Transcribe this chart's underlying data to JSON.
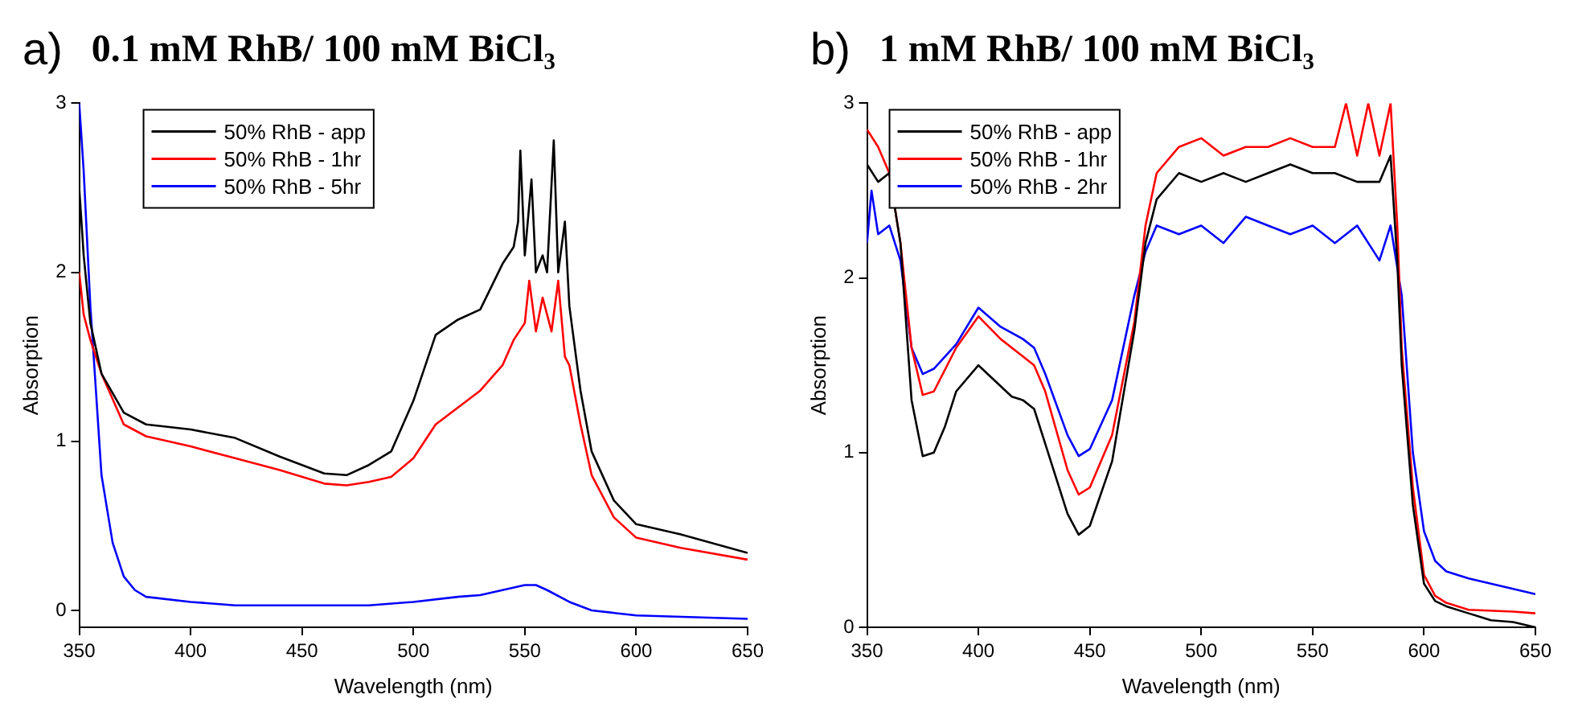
{
  "chart_data": [
    {
      "type": "line",
      "title": "0.1 mM RhB/ 100 mM BiCl₃",
      "annotations": [
        "a)"
      ],
      "xlabel": "Wavelength (nm)",
      "ylabel": "Absorption",
      "xlim": [
        350,
        650
      ],
      "xticks": [
        350,
        400,
        450,
        500,
        550,
        600,
        650
      ],
      "ylim": [
        -0.1,
        3
      ],
      "yticks": [
        0,
        1,
        2,
        3
      ],
      "grid": false,
      "legend": "top left",
      "marker": "none",
      "line_style": "solid",
      "series": [
        {
          "name": "50% RhB - app",
          "color": "#000000",
          "x": [
            350,
            352,
            355,
            360,
            370,
            380,
            400,
            420,
            440,
            460,
            470,
            480,
            490,
            500,
            510,
            520,
            530,
            540,
            545,
            547,
            548,
            550,
            553,
            555,
            558,
            560,
            563,
            565,
            568,
            570,
            575,
            580,
            590,
            600,
            620,
            650
          ],
          "values": [
            2.5,
            2.1,
            1.7,
            1.4,
            1.17,
            1.1,
            1.07,
            1.02,
            0.91,
            0.81,
            0.8,
            0.86,
            0.94,
            1.24,
            1.63,
            1.72,
            1.78,
            2.05,
            2.15,
            2.3,
            2.72,
            2.1,
            2.55,
            2.0,
            2.1,
            2.0,
            2.78,
            2.0,
            2.3,
            1.8,
            1.3,
            0.94,
            0.65,
            0.51,
            0.45,
            0.34
          ]
        },
        {
          "name": "50% RhB - 1hr",
          "color": "#ff0000",
          "x": [
            350,
            352,
            355,
            360,
            370,
            380,
            400,
            420,
            440,
            460,
            470,
            480,
            490,
            500,
            510,
            520,
            530,
            540,
            545,
            550,
            552,
            555,
            558,
            562,
            565,
            568,
            570,
            575,
            580,
            590,
            600,
            620,
            650
          ],
          "values": [
            2.0,
            1.75,
            1.6,
            1.4,
            1.1,
            1.03,
            0.97,
            0.9,
            0.83,
            0.75,
            0.74,
            0.76,
            0.79,
            0.9,
            1.1,
            1.2,
            1.3,
            1.45,
            1.6,
            1.7,
            1.95,
            1.65,
            1.85,
            1.65,
            1.95,
            1.5,
            1.45,
            1.1,
            0.8,
            0.55,
            0.43,
            0.37,
            0.3
          ]
        },
        {
          "name": "50% RhB - 5hr",
          "color": "#0000ff",
          "x": [
            350,
            352,
            355,
            358,
            360,
            365,
            370,
            375,
            380,
            400,
            420,
            450,
            480,
            500,
            520,
            530,
            540,
            550,
            555,
            560,
            570,
            580,
            600,
            650
          ],
          "values": [
            3.0,
            2.6,
            1.8,
            1.2,
            0.8,
            0.4,
            0.2,
            0.12,
            0.08,
            0.05,
            0.03,
            0.03,
            0.03,
            0.05,
            0.08,
            0.09,
            0.12,
            0.15,
            0.15,
            0.12,
            0.05,
            0.0,
            -0.03,
            -0.05
          ]
        }
      ]
    },
    {
      "type": "line",
      "title": "1 mM RhB/ 100 mM BiCl₃",
      "annotations": [
        "b)"
      ],
      "xlabel": "Wavelength (nm)",
      "ylabel": "Absorption",
      "xlim": [
        350,
        650
      ],
      "xticks": [
        350,
        400,
        450,
        500,
        550,
        600,
        650
      ],
      "ylim": [
        0,
        3
      ],
      "yticks": [
        0,
        1,
        2,
        3
      ],
      "grid": false,
      "legend": "top left",
      "marker": "none",
      "line_style": "solid",
      "series": [
        {
          "name": "50% RhB - app",
          "color": "#000000",
          "x": [
            350,
            355,
            360,
            365,
            370,
            375,
            380,
            385,
            390,
            400,
            410,
            415,
            420,
            425,
            430,
            440,
            445,
            450,
            460,
            470,
            475,
            480,
            490,
            500,
            510,
            520,
            530,
            540,
            550,
            560,
            570,
            580,
            585,
            588,
            590,
            595,
            600,
            605,
            610,
            620,
            630,
            640,
            650
          ],
          "values": [
            2.65,
            2.55,
            2.6,
            2.2,
            1.3,
            0.98,
            1.0,
            1.15,
            1.35,
            1.5,
            1.38,
            1.32,
            1.3,
            1.25,
            1.05,
            0.65,
            0.53,
            0.58,
            0.95,
            1.7,
            2.2,
            2.45,
            2.6,
            2.55,
            2.6,
            2.55,
            2.6,
            2.65,
            2.6,
            2.6,
            2.55,
            2.55,
            2.7,
            2.1,
            1.5,
            0.7,
            0.25,
            0.15,
            0.12,
            0.08,
            0.04,
            0.03,
            0.0
          ]
        },
        {
          "name": "50% RhB - 1hr",
          "color": "#ff0000",
          "x": [
            350,
            355,
            360,
            365,
            370,
            375,
            380,
            390,
            400,
            410,
            420,
            425,
            430,
            440,
            445,
            450,
            460,
            470,
            475,
            480,
            490,
            500,
            510,
            520,
            530,
            540,
            550,
            560,
            565,
            570,
            575,
            580,
            585,
            588,
            590,
            595,
            600,
            605,
            610,
            620,
            640,
            650
          ],
          "values": [
            2.85,
            2.75,
            2.6,
            2.2,
            1.6,
            1.33,
            1.35,
            1.6,
            1.78,
            1.65,
            1.55,
            1.5,
            1.35,
            0.9,
            0.76,
            0.8,
            1.1,
            1.75,
            2.3,
            2.6,
            2.75,
            2.8,
            2.7,
            2.75,
            2.75,
            2.8,
            2.75,
            2.75,
            3.0,
            2.7,
            3.0,
            2.7,
            3.0,
            2.3,
            1.6,
            0.8,
            0.3,
            0.18,
            0.14,
            0.1,
            0.09,
            0.08
          ]
        },
        {
          "name": "50% RhB - 2hr",
          "color": "#0000ff",
          "x": [
            350,
            352,
            355,
            360,
            365,
            370,
            375,
            380,
            390,
            400,
            410,
            420,
            425,
            430,
            440,
            445,
            450,
            460,
            470,
            475,
            480,
            490,
            500,
            510,
            520,
            530,
            540,
            550,
            560,
            570,
            580,
            585,
            590,
            595,
            600,
            605,
            610,
            620,
            630,
            640,
            650
          ],
          "values": [
            2.2,
            2.5,
            2.25,
            2.3,
            2.1,
            1.6,
            1.45,
            1.48,
            1.62,
            1.83,
            1.72,
            1.65,
            1.6,
            1.45,
            1.1,
            0.98,
            1.02,
            1.3,
            1.9,
            2.15,
            2.3,
            2.25,
            2.3,
            2.2,
            2.35,
            2.3,
            2.25,
            2.3,
            2.2,
            2.3,
            2.1,
            2.3,
            1.9,
            1.0,
            0.55,
            0.38,
            0.32,
            0.28,
            0.25,
            0.22,
            0.19
          ]
        }
      ]
    }
  ]
}
